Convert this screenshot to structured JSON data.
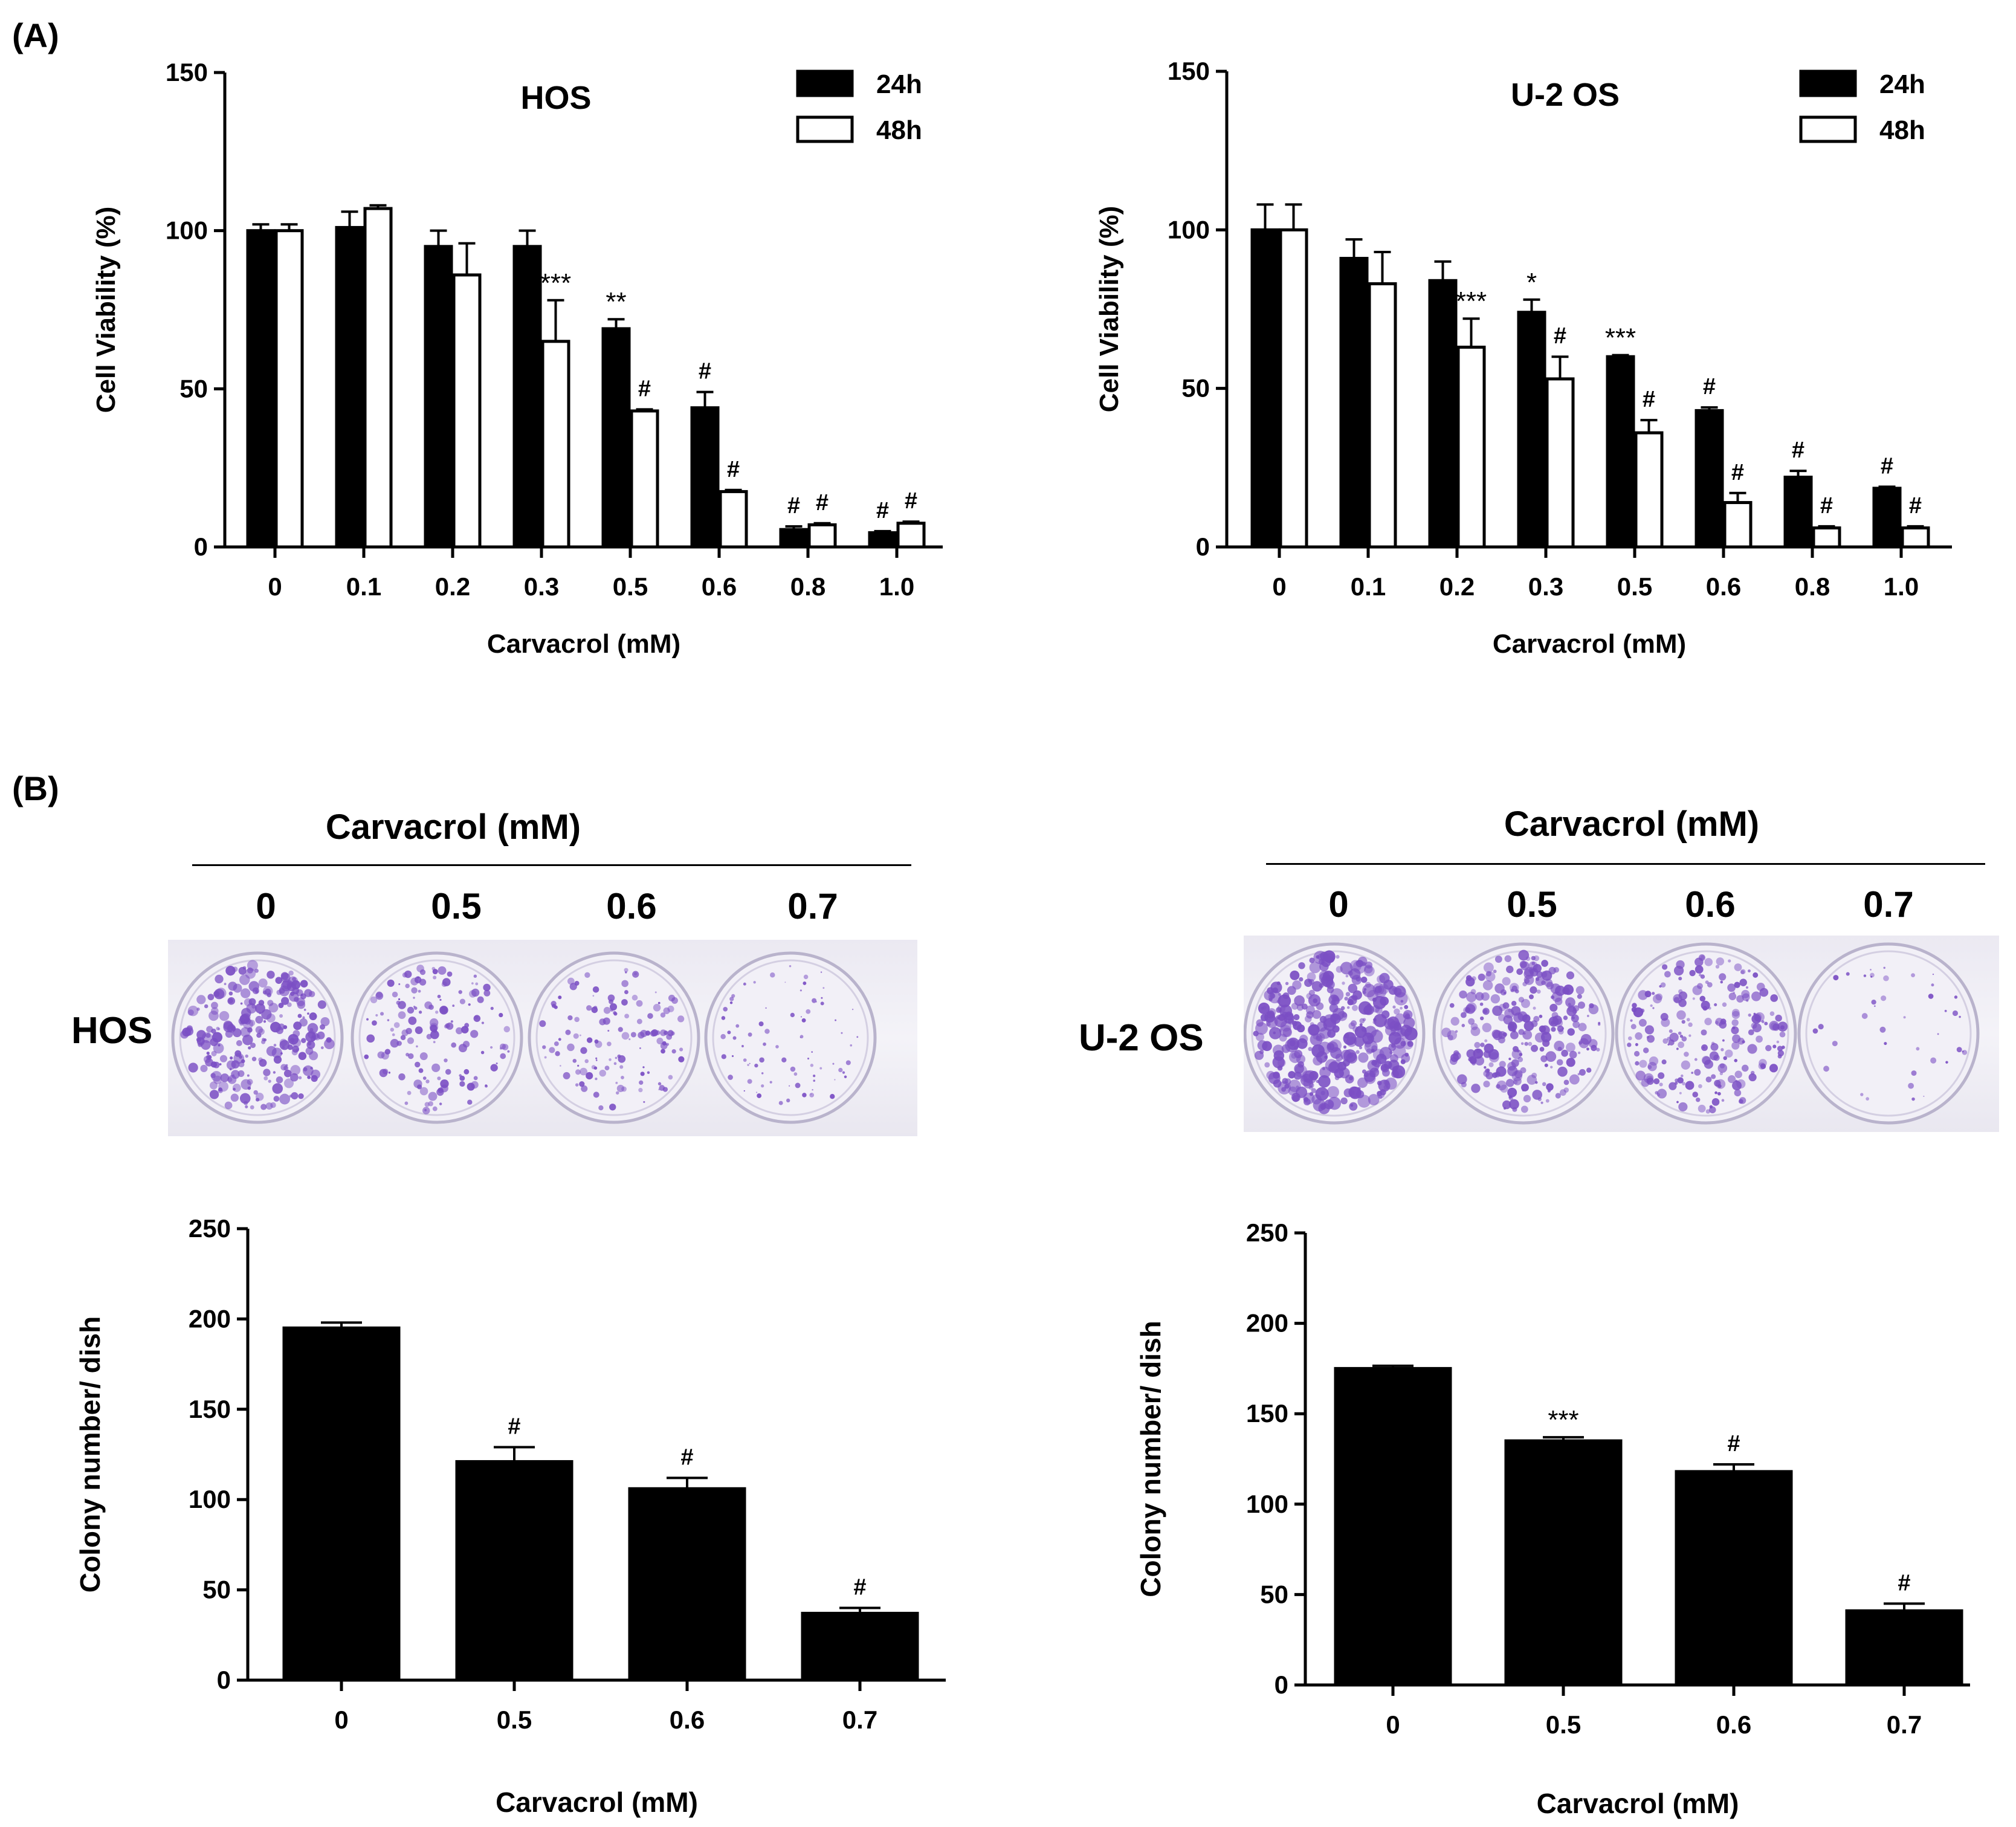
{
  "panels": {
    "a": "(A)",
    "b": "(B)"
  },
  "legend": {
    "entries": [
      "24h",
      "48h"
    ]
  },
  "colors": {
    "bar_24h": "#000000",
    "bar_48h": "#ffffff",
    "plate_stain": "#7b4fc4"
  },
  "panel_b": {
    "left": {
      "header": "Carvacrol (mM)",
      "cell_line": "HOS",
      "concentrations": [
        "0",
        "0.5",
        "0.6",
        "0.7"
      ]
    },
    "right": {
      "header": "Carvacrol (mM)",
      "cell_line": "U-2 OS",
      "concentrations": [
        "0",
        "0.5",
        "0.6",
        "0.7"
      ]
    }
  },
  "chart_data": [
    {
      "id": "hos-viability",
      "type": "bar",
      "title": "HOS",
      "xlabel": "Carvacrol (mM)",
      "ylabel": "Cell Viability (%)",
      "ylim": [
        0,
        150
      ],
      "yticks": [
        "0",
        "50",
        "100",
        "150"
      ],
      "categories": [
        "0",
        "0.1",
        "0.2",
        "0.3",
        "0.5",
        "0.6",
        "0.8",
        "1.0"
      ],
      "series": [
        {
          "name": "24h",
          "values": [
            100,
            101,
            95,
            95,
            69,
            44,
            5.5,
            4.5
          ],
          "errors": [
            2,
            5,
            5,
            5,
            3,
            5,
            1,
            0.5
          ],
          "annotations": [
            "",
            "",
            "",
            "",
            "**",
            "#",
            "#",
            "#"
          ]
        },
        {
          "name": "48h",
          "values": [
            100,
            107,
            86,
            65,
            43,
            17.5,
            7,
            7.5
          ],
          "errors": [
            2,
            1,
            10,
            13,
            0.5,
            0.5,
            0.5,
            0.5
          ],
          "annotations": [
            "",
            "",
            "",
            "***",
            "#",
            "#",
            "#",
            "#"
          ]
        }
      ]
    },
    {
      "id": "u2os-viability",
      "type": "bar",
      "title": "U-2 OS",
      "xlabel": "Carvacrol (mM)",
      "ylabel": "Cell Viability (%)",
      "ylim": [
        0,
        150
      ],
      "yticks": [
        "0",
        "50",
        "100",
        "150"
      ],
      "categories": [
        "0",
        "0.1",
        "0.2",
        "0.3",
        "0.5",
        "0.6",
        "0.8",
        "1.0"
      ],
      "series": [
        {
          "name": "24h",
          "values": [
            100,
            91,
            84,
            74,
            60,
            43,
            22,
            18.5
          ],
          "errors": [
            8,
            6,
            6,
            4,
            0.5,
            1,
            2,
            0.5
          ],
          "annotations": [
            "",
            "",
            "",
            "*",
            "***",
            "#",
            "#",
            "#"
          ]
        },
        {
          "name": "48h",
          "values": [
            100,
            83,
            63,
            53,
            36,
            14,
            6,
            6
          ],
          "errors": [
            8,
            10,
            9,
            7,
            4,
            3,
            0.5,
            0.5
          ],
          "annotations": [
            "",
            "",
            "***",
            "#",
            "#",
            "#",
            "#",
            "#"
          ]
        }
      ]
    },
    {
      "id": "hos-colony",
      "type": "bar",
      "title": "",
      "xlabel": "Carvacrol (mM)",
      "ylabel": "Colony number/ dish",
      "ylim": [
        0,
        250
      ],
      "yticks": [
        "0",
        "50",
        "100",
        "150",
        "200",
        "250"
      ],
      "categories": [
        "0",
        "0.5",
        "0.6",
        "0.7"
      ],
      "series": [
        {
          "name": "colonies",
          "values": [
            195,
            121,
            106,
            37
          ],
          "errors": [
            3,
            8,
            6,
            3
          ],
          "annotations": [
            "",
            "#",
            "#",
            "#"
          ]
        }
      ]
    },
    {
      "id": "u2os-colony",
      "type": "bar",
      "title": "",
      "xlabel": "Carvacrol (mM)",
      "ylabel": "Colony number/ dish",
      "ylim": [
        0,
        250
      ],
      "yticks": [
        "0",
        "50",
        "100",
        "150",
        "200",
        "250"
      ],
      "categories": [
        "0",
        "0.5",
        "0.6",
        "0.7"
      ],
      "series": [
        {
          "name": "colonies",
          "values": [
            175,
            135,
            118,
            41
          ],
          "errors": [
            1.5,
            2,
            4,
            4
          ],
          "annotations": [
            "",
            "***",
            "#",
            "#"
          ]
        }
      ]
    }
  ]
}
